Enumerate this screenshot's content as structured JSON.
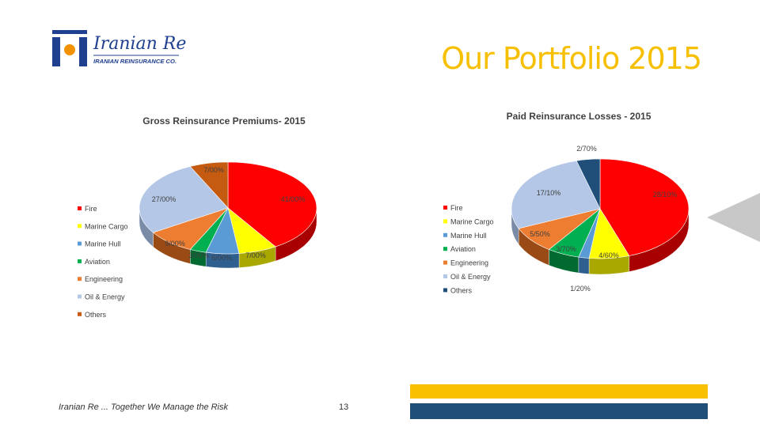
{
  "logo": {
    "script_name": "Iranian Re",
    "company_name": "IRANIAN REINSURANCE CO."
  },
  "slide_title": "Our Portfolio 2015",
  "footer": {
    "tagline": "Iranian Re ... Together We Manage the Risk",
    "page_number": "13"
  },
  "colors": {
    "title": "#f6c000",
    "bar_yellow": "#f8c000",
    "bar_blue": "#1f4e79",
    "logo_blue": "#1f3f8f"
  },
  "chart_data": [
    {
      "type": "pie",
      "title": "Gross Reinsurance Premiums- 2015",
      "legend_position": "left",
      "slices": [
        {
          "name": "Fire",
          "value": 41,
          "label": "41/00%",
          "color": "#ff0000",
          "dark": "#a80000"
        },
        {
          "name": "Marine Cargo",
          "value": 7,
          "label": "7/00%",
          "color": "#ffff00",
          "dark": "#a8a800"
        },
        {
          "name": "Marine Hull",
          "value": 6,
          "label": "6/00%",
          "color": "#5b9bd5",
          "dark": "#2f5f8f"
        },
        {
          "name": "Aviation",
          "value": 3,
          "label": "3/00%",
          "color": "#00b050",
          "dark": "#006a30"
        },
        {
          "name": "Engineering",
          "value": 9,
          "label": "9/00%",
          "color": "#ed7d31",
          "dark": "#9a4a14"
        },
        {
          "name": "Oil & Energy",
          "value": 27,
          "label": "27/00%",
          "color": "#b4c7e7",
          "dark": "#7a8ba8"
        },
        {
          "name": "Others",
          "value": 7,
          "label": "7/00%",
          "color": "#c55a11",
          "dark": "#7a3306"
        }
      ]
    },
    {
      "type": "pie",
      "title": "Paid Reinsurance Losses - 2015",
      "legend_position": "left",
      "slices": [
        {
          "name": "Fire",
          "value": 28.1,
          "label": "28/10%",
          "color": "#ff0000",
          "dark": "#a80000"
        },
        {
          "name": "Marine Cargo",
          "value": 4.6,
          "label": "4/60%",
          "color": "#ffff00",
          "dark": "#a8a800"
        },
        {
          "name": "Marine Hull",
          "value": 1.2,
          "label": "1/20%",
          "color": "#5b9bd5",
          "dark": "#2f5f8f"
        },
        {
          "name": "Aviation",
          "value": 3.7,
          "label": "3/70%",
          "color": "#00b050",
          "dark": "#006a30"
        },
        {
          "name": "Engineering",
          "value": 5.5,
          "label": "5/50%",
          "color": "#ed7d31",
          "dark": "#9a4a14"
        },
        {
          "name": "Oil & Energy",
          "value": 17.1,
          "label": "17/10%",
          "color": "#b4c7e7",
          "dark": "#7a8ba8"
        },
        {
          "name": "Others",
          "value": 2.7,
          "label": "2/70%",
          "color": "#1f4e79",
          "dark": "#0f2a45"
        }
      ]
    }
  ]
}
